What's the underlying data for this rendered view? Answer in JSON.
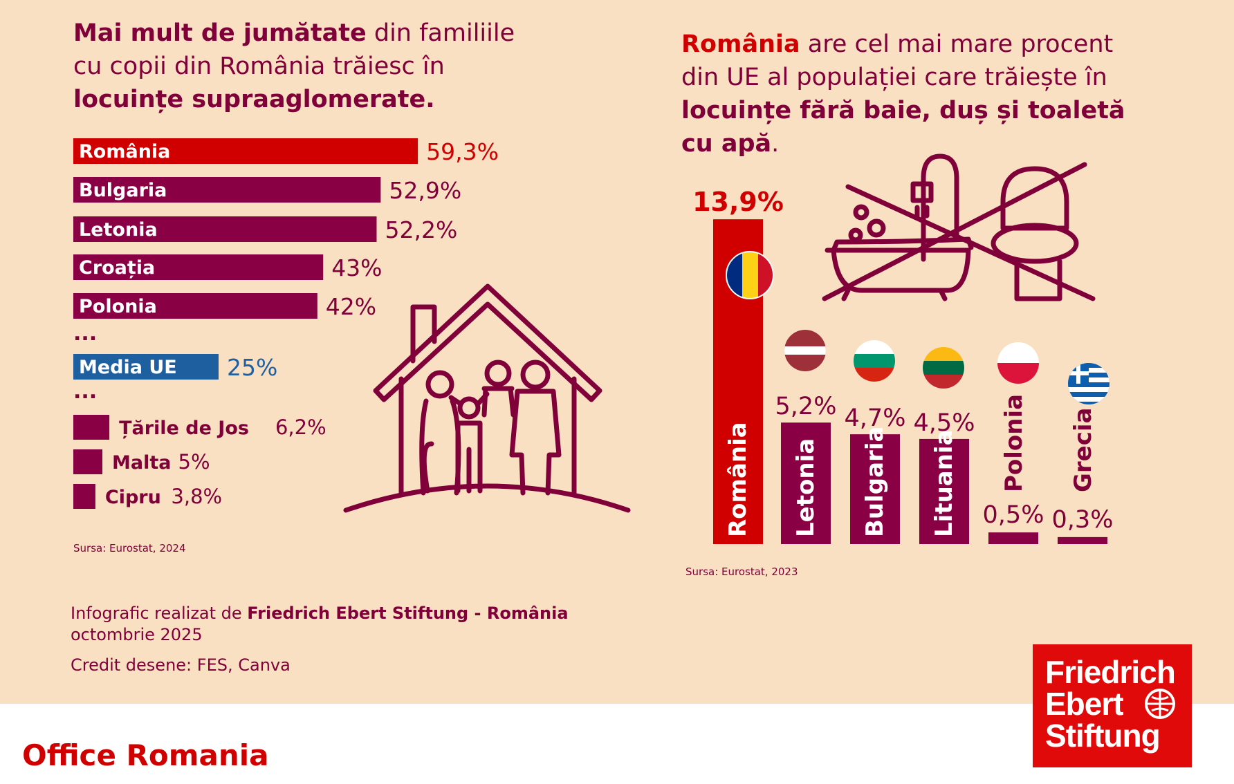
{
  "left": {
    "headline": {
      "part1_bold": "Mai mult de jumătate",
      "part2": " din familiile",
      "part3": "cu copii din România trăiesc în",
      "part4_bold": "locuințe supraaglomerate."
    },
    "source": "Sursa: Eurostat, 2024"
  },
  "right": {
    "headline": {
      "part1_red": "România",
      "part2": " are cel mai mare procent",
      "part3": "din UE al populației care trăiește în",
      "part4_bold": "locuințe fără baie, duș și toaletă",
      "part5_bold": "cu apă",
      "part6": "."
    },
    "source": "Sursa: Eurostat, 2023"
  },
  "chart_data": [
    {
      "type": "bar",
      "orientation": "horizontal",
      "title": "Familii cu copii în locuințe supraaglomerate",
      "categories": [
        "România",
        "Bulgaria",
        "Letonia",
        "Croația",
        "Polonia",
        "Media UE",
        "Țările de Jos",
        "Malta",
        "Cipru"
      ],
      "values": [
        59.3,
        52.9,
        52.2,
        43,
        42,
        25,
        6.2,
        5,
        3.8
      ],
      "labels": [
        "59,3%",
        "52,9%",
        "52,2%",
        "43%",
        "42%",
        "25%",
        "6,2%",
        "5%",
        "3,8%"
      ],
      "ellipsis": "...",
      "unit": "%",
      "colors": {
        "highlight": "#d10000",
        "default": "#8a0045",
        "eu": "#1e5fa0"
      }
    },
    {
      "type": "bar",
      "orientation": "vertical",
      "title": "Populație în locuințe fără baie, duș și toaletă cu apă",
      "categories": [
        "România",
        "Letonia",
        "Bulgaria",
        "Lituania",
        "Polonia",
        "Grecia"
      ],
      "values": [
        13.9,
        5.2,
        4.7,
        4.5,
        0.5,
        0.3
      ],
      "labels": [
        "13,9%",
        "5,2%",
        "4,7%",
        "4,5%",
        "0,5%",
        "0,3%"
      ],
      "unit": "%",
      "colors": {
        "highlight": "#d10000",
        "default": "#8a0045"
      }
    }
  ],
  "footer": {
    "credit_prefix": "Infografic realizat de ",
    "credit_org": "Friedrich Ebert Stiftung - România",
    "date": "octombrie 2025",
    "drawings": "Credit desene: FES, Canva",
    "office": "Office Romania"
  },
  "logo": {
    "line1": "Friedrich",
    "line2": "Ebert",
    "line3": "Stiftung"
  },
  "icons": [
    "house-family-icon",
    "bath-shower-toilet-crossed-icon",
    "flag-romania-icon",
    "flag-latvia-icon",
    "flag-bulgaria-icon",
    "flag-lithuania-icon",
    "flag-poland-icon",
    "flag-greece-icon",
    "fes-globe-icon"
  ],
  "colors": {
    "background": "#fae0c3",
    "primary": "#80003a",
    "accent": "#d10000",
    "eu_blue": "#1e5fa0",
    "logo_red": "#e10a0a"
  }
}
